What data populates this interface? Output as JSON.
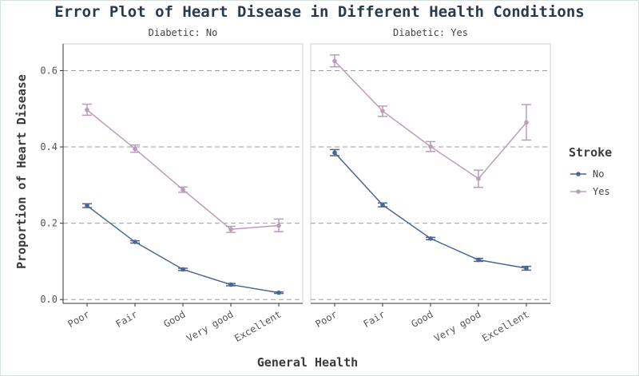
{
  "chart_data": {
    "type": "line",
    "title": "Error Plot of Heart Disease in Different Health Conditions",
    "xlabel": "General Health",
    "ylabel": "Proportion of Heart Disease",
    "categories": [
      "Poor",
      "Fair",
      "Good",
      "Very good",
      "Excellent"
    ],
    "ylim": [
      -0.01,
      0.67
    ],
    "yticks": [
      0.0,
      0.2,
      0.4,
      0.6
    ],
    "ytick_labels": [
      "0.0",
      "0.2",
      "0.4",
      "0.6"
    ],
    "grid": "horizontal dashed",
    "legend": {
      "title": "Stroke",
      "placement": "right",
      "entries": [
        "No",
        "Yes"
      ]
    },
    "series_colors": {
      "No": "#4a6596",
      "Yes": "#bb9dbb"
    },
    "panels": [
      {
        "label": "Diabetic: No",
        "series": [
          {
            "name": "No",
            "values": [
              0.246,
              0.151,
              0.079,
              0.039,
              0.018
            ],
            "err_low": [
              0.241,
              0.148,
              0.076,
              0.036,
              0.016
            ],
            "err_high": [
              0.251,
              0.154,
              0.082,
              0.042,
              0.02
            ]
          },
          {
            "name": "Yes",
            "values": [
              0.497,
              0.395,
              0.288,
              0.184,
              0.194
            ],
            "err_low": [
              0.483,
              0.386,
              0.281,
              0.176,
              0.178
            ],
            "err_high": [
              0.512,
              0.405,
              0.295,
              0.192,
              0.211
            ]
          }
        ]
      },
      {
        "label": "Diabetic: Yes",
        "series": [
          {
            "name": "No",
            "values": [
              0.385,
              0.248,
              0.16,
              0.104,
              0.082
            ],
            "err_low": [
              0.377,
              0.243,
              0.157,
              0.1,
              0.077
            ],
            "err_high": [
              0.393,
              0.253,
              0.163,
              0.108,
              0.087
            ]
          },
          {
            "name": "Yes",
            "values": [
              0.625,
              0.494,
              0.401,
              0.317,
              0.464
            ],
            "err_low": [
              0.61,
              0.48,
              0.388,
              0.294,
              0.418
            ],
            "err_high": [
              0.641,
              0.507,
              0.414,
              0.339,
              0.511
            ]
          }
        ]
      }
    ]
  }
}
